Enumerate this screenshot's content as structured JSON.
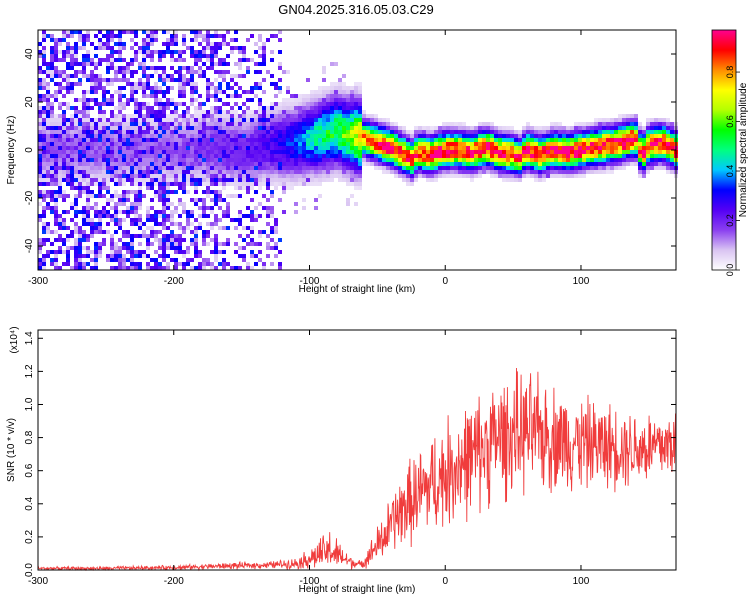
{
  "title": "GN04.2025.316.05.03.C29",
  "chart_data": [
    {
      "type": "heatmap",
      "xlabel": "Height of straight line (km)",
      "ylabel": "Frequency (Hz)",
      "xlim": [
        -300,
        170
      ],
      "ylim": [
        -50,
        50
      ],
      "xticks": [
        -300,
        -200,
        -100,
        0,
        100
      ],
      "yticks": [
        -40,
        -20,
        0,
        20,
        40
      ],
      "colorbar": {
        "label": "Normalized spectral amplitude",
        "range": [
          0,
          0.97
        ],
        "ticks": [
          "0.0",
          "0.2",
          "0.4",
          "0.6",
          "0.8"
        ],
        "tick_values": [
          0,
          0.2,
          0.4,
          0.6,
          0.8
        ],
        "colors": [
          "#ffffff",
          "#d9c4f2",
          "#8a3ff0",
          "#5400f5",
          "#0000ff",
          "#00c8ff",
          "#00ff80",
          "#00ff00",
          "#b4ff00",
          "#ffff00",
          "#ff8c00",
          "#ff0000",
          "#ff0090"
        ]
      },
      "noise_region": {
        "x_range": [
          -300,
          -120
        ],
        "amplitude": [
          0.05,
          0.35
        ]
      },
      "sparse_region": {
        "x_range": [
          -120,
          -60
        ],
        "amplitude": [
          0.02,
          0.2
        ]
      },
      "ridge": {
        "x": [
          -190,
          -170,
          -150,
          -130,
          -110,
          -90,
          -80,
          -70,
          -60,
          -50,
          -40,
          -30,
          -25,
          -20,
          -10,
          0,
          10,
          20,
          30,
          40,
          50,
          55,
          60,
          70,
          80,
          90,
          100,
          110,
          120,
          130,
          140,
          145,
          150,
          160,
          170
        ],
        "y": [
          0,
          1,
          -1,
          2,
          3,
          6,
          8,
          6,
          5,
          3,
          1,
          -2,
          -4,
          -1,
          -2,
          0,
          0,
          -1,
          1,
          -1,
          -2,
          -3,
          0,
          -2,
          0,
          -1,
          0,
          1,
          2,
          3,
          5,
          -2,
          2,
          3,
          0
        ],
        "peak_amplitude": [
          0.15,
          0.2,
          0.2,
          0.25,
          0.35,
          0.5,
          0.55,
          0.6,
          0.8,
          0.9,
          0.95,
          0.95,
          0.9,
          0.9,
          0.95,
          0.95,
          0.95,
          0.95,
          0.95,
          0.95,
          0.95,
          0.9,
          0.95,
          0.95,
          0.95,
          0.95,
          0.95,
          0.95,
          0.95,
          0.95,
          0.95,
          0.9,
          0.95,
          0.95,
          0.95
        ]
      }
    },
    {
      "type": "line",
      "xlabel": "Height of straight line (km)",
      "ylabel": "SNR (10 * v/v)",
      "y_multiplier": "(x10⁴)",
      "xlim": [
        -300,
        170
      ],
      "ylim": [
        0,
        1.45
      ],
      "xticks": [
        -300,
        -200,
        -100,
        0,
        100
      ],
      "yticks": [
        "0.0",
        "0.2",
        "0.4",
        "0.6",
        "0.8",
        "1.0",
        "1.2",
        "1.4"
      ],
      "ytick_values": [
        0,
        0.2,
        0.4,
        0.6,
        0.8,
        1.0,
        1.2,
        1.4
      ],
      "color": "#f03c3c",
      "series": [
        {
          "x": [
            -300,
            -250,
            -200,
            -160,
            -130,
            -110,
            -100,
            -90,
            -85,
            -75,
            -70,
            -62,
            -45,
            -38,
            -30,
            -20,
            -10,
            0,
            10,
            20,
            30,
            40,
            50,
            60,
            70,
            80,
            90,
            100,
            110,
            120,
            130,
            140,
            150,
            160,
            170
          ],
          "center": [
            0.01,
            0.01,
            0.015,
            0.025,
            0.03,
            0.04,
            0.07,
            0.1,
            0.12,
            0.07,
            0.05,
            0.03,
            0.2,
            0.3,
            0.38,
            0.45,
            0.52,
            0.58,
            0.64,
            0.68,
            0.75,
            0.8,
            0.82,
            0.83,
            0.82,
            0.8,
            0.78,
            0.77,
            0.76,
            0.75,
            0.75,
            0.74,
            0.74,
            0.75,
            0.77
          ],
          "spread": [
            0.008,
            0.01,
            0.012,
            0.018,
            0.02,
            0.03,
            0.06,
            0.1,
            0.12,
            0.06,
            0.04,
            0.02,
            0.14,
            0.18,
            0.22,
            0.26,
            0.28,
            0.3,
            0.32,
            0.33,
            0.33,
            0.34,
            0.34,
            0.33,
            0.32,
            0.3,
            0.28,
            0.26,
            0.25,
            0.24,
            0.23,
            0.22,
            0.22,
            0.21,
            0.2
          ]
        }
      ]
    }
  ]
}
